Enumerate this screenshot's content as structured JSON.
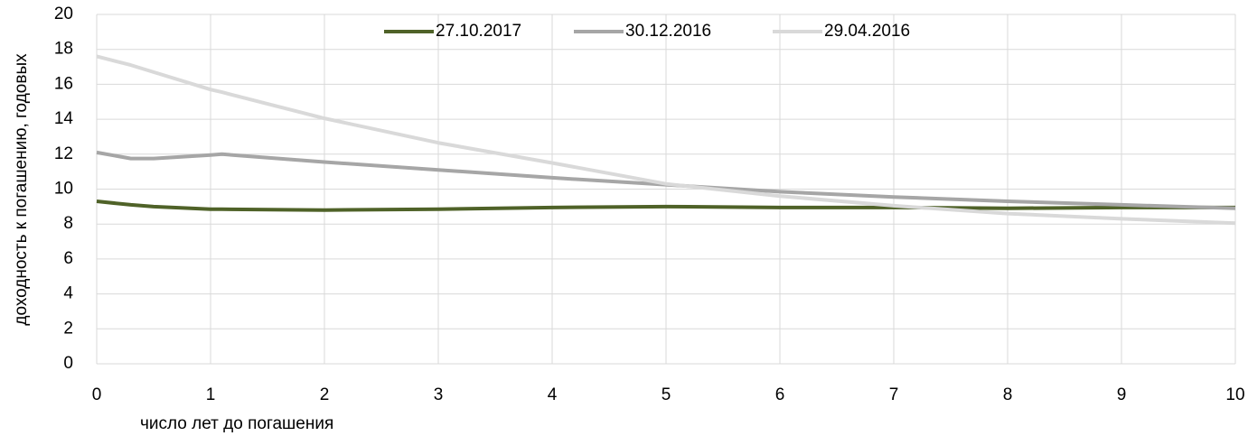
{
  "chart_data": {
    "type": "line",
    "xlabel": "число лет до погашения",
    "ylabel": "доходность к погашению, годовых",
    "x": [
      0,
      0.3,
      0.5,
      1,
      1.1,
      2,
      3,
      4,
      5,
      6,
      7,
      8,
      9,
      10
    ],
    "series": [
      {
        "name": "27.10.2017",
        "color": "#4f6228",
        "values": [
          9.3,
          9.1,
          9.0,
          8.85,
          8.85,
          8.8,
          8.85,
          8.95,
          9.0,
          8.95,
          8.95,
          8.9,
          8.95,
          8.95
        ]
      },
      {
        "name": "30.12.2016",
        "color": "#a6a6a6",
        "values": [
          12.1,
          11.75,
          11.75,
          11.95,
          12.0,
          11.55,
          11.1,
          10.65,
          10.25,
          9.85,
          9.55,
          9.3,
          9.1,
          8.9
        ]
      },
      {
        "name": "29.04.2016",
        "color": "#d9d9d9",
        "values": [
          17.6,
          17.1,
          16.7,
          15.7,
          15.55,
          14.05,
          12.65,
          11.5,
          10.3,
          9.6,
          9.05,
          8.6,
          8.3,
          8.05
        ]
      }
    ],
    "xlim": [
      0,
      10
    ],
    "xticks": [
      0,
      1,
      2,
      3,
      4,
      5,
      6,
      7,
      8,
      9,
      10
    ],
    "ylim": [
      0,
      20
    ],
    "yticks": [
      0,
      2,
      4,
      6,
      8,
      10,
      12,
      14,
      16,
      18,
      20
    ],
    "grid": true,
    "legend": "top"
  }
}
